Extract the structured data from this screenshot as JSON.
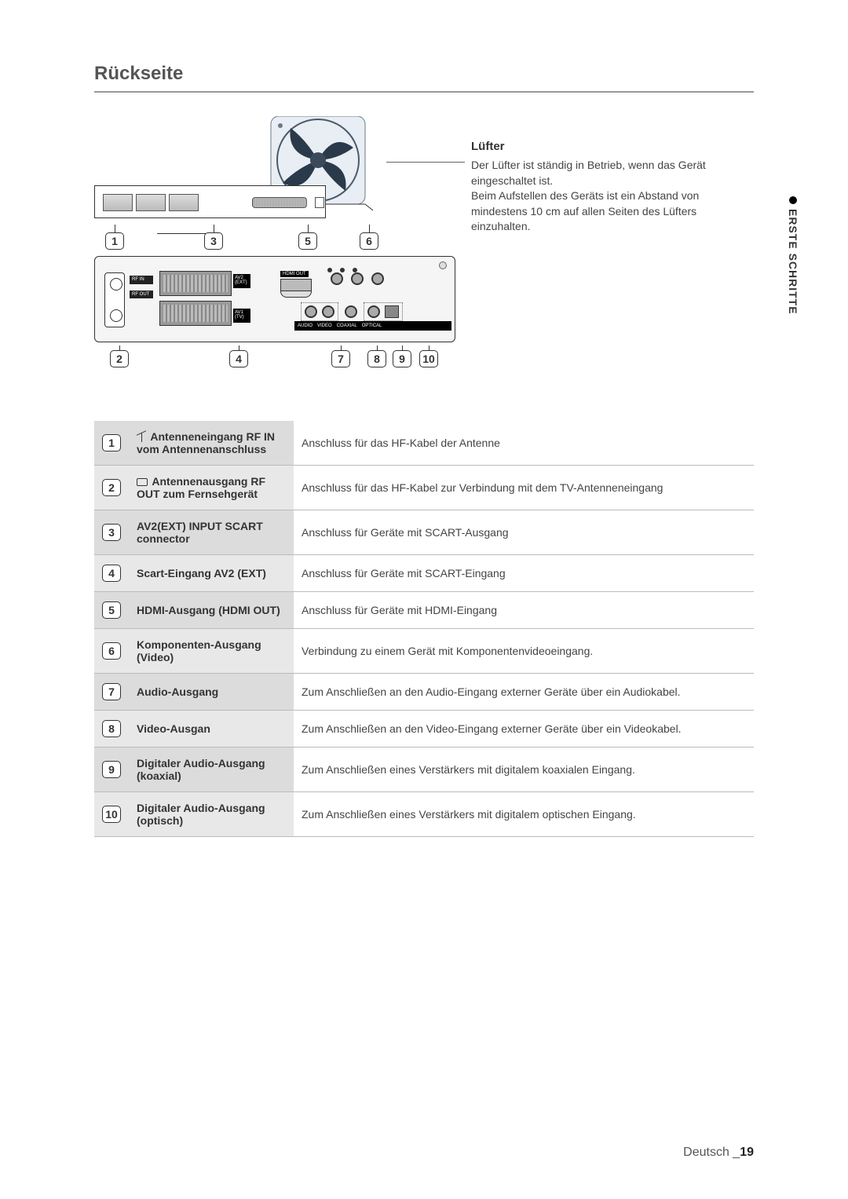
{
  "title": "Rückseite",
  "fan": {
    "heading": "Lüfter",
    "p1": "Der Lüfter ist ständig in Betrieb, wenn das Gerät eingeschaltet ist.",
    "p2": "Beim Aufstellen des Geräts ist ein Abstand von mindestens 10 cm auf allen Seiten des Lüfters einzuhalten."
  },
  "sidetab": "ERSTE SCHRITTE",
  "numbers": {
    "n1": "1",
    "n2": "2",
    "n3": "3",
    "n4": "4",
    "n5": "5",
    "n6": "6",
    "n7": "7",
    "n8": "8",
    "n9": "9",
    "n10": "10"
  },
  "diag": {
    "av2": "AV2\n(EXT)",
    "av1": "AV1\n(TV)",
    "hdmi": "HDMI OUT",
    "strip_audio": "AUDIO",
    "strip_video": "VIDEO",
    "strip_coax": "COAXIAL",
    "strip_opt": "OPTICAL",
    "strip_out": "DIGITAL AUDIO OUT"
  },
  "rows": [
    {
      "num": "1",
      "label": "Antenneneingang RF IN vom Antennenanschluss",
      "desc": "Anschluss für das HF-Kabel der Antenne",
      "icon": "ant"
    },
    {
      "num": "2",
      "label": "Antennenausgang RF OUT zum Fernsehgerät",
      "desc": "Anschluss für das HF-Kabel zur Verbindung mit dem TV-Antenneneingang",
      "icon": "tv"
    },
    {
      "num": "3",
      "label": "AV2(EXT) INPUT SCART connector",
      "desc": "Anschluss für Geräte mit SCART-Ausgang"
    },
    {
      "num": "4",
      "label": "Scart-Eingang AV2 (EXT)",
      "desc": "Anschluss für Geräte mit SCART-Eingang"
    },
    {
      "num": "5",
      "label": "HDMI-Ausgang (HDMI OUT)",
      "desc": "Anschluss für Geräte mit HDMI-Eingang"
    },
    {
      "num": "6",
      "label": "Komponenten-Ausgang (Video)",
      "desc": "Verbindung zu einem Gerät mit Komponentenvideoeingang."
    },
    {
      "num": "7",
      "label": "Audio-Ausgang",
      "desc": "Zum Anschließen an den Audio-Eingang externer Geräte über ein Audiokabel."
    },
    {
      "num": "8",
      "label": "Video-Ausgan",
      "desc": "Zum Anschließen an den Video-Eingang externer Geräte über ein Videokabel."
    },
    {
      "num": "9",
      "label": "Digitaler Audio-Ausgang (koaxial)",
      "desc": "Zum Anschließen eines Verstärkers mit digitalem koaxialen Eingang."
    },
    {
      "num": "10",
      "label": "Digitaler Audio-Ausgang (optisch)",
      "desc": "Zum Anschließen eines Verstärkers mit digitalem optischen Eingang."
    }
  ],
  "footer": {
    "lang": "Deutsch",
    "sep": "_",
    "page": "19"
  },
  "colors": {
    "fan_dark": "#2b3a4a",
    "fan_light": "#5a7a9a"
  }
}
